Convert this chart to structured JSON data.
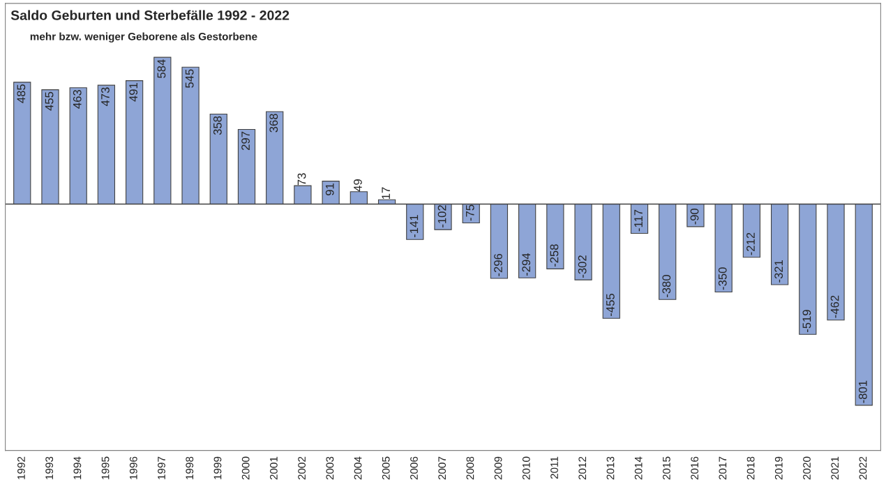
{
  "chart_data": {
    "type": "bar",
    "title": "Saldo Geburten und Sterbefälle 1992 - 2022",
    "subtitle": "mehr bzw. weniger Geborene als Gestorbene",
    "categories": [
      "1992",
      "1993",
      "1994",
      "1995",
      "1996",
      "1997",
      "1998",
      "1999",
      "2000",
      "2001",
      "2002",
      "2003",
      "2004",
      "2005",
      "2006",
      "2007",
      "2008",
      "2009",
      "2010",
      "2011",
      "2012",
      "2013",
      "2014",
      "2015",
      "2016",
      "2017",
      "2018",
      "2019",
      "2020",
      "2021",
      "2022"
    ],
    "values": [
      485,
      455,
      463,
      473,
      491,
      584,
      545,
      358,
      297,
      368,
      73,
      91,
      49,
      17,
      -141,
      -102,
      -75,
      -296,
      -294,
      -258,
      -302,
      -455,
      -117,
      -380,
      -90,
      -350,
      -212,
      -321,
      -519,
      -462,
      -801
    ],
    "color": "#8ea5d6",
    "data_labels": true,
    "grid": false,
    "legend": false
  }
}
